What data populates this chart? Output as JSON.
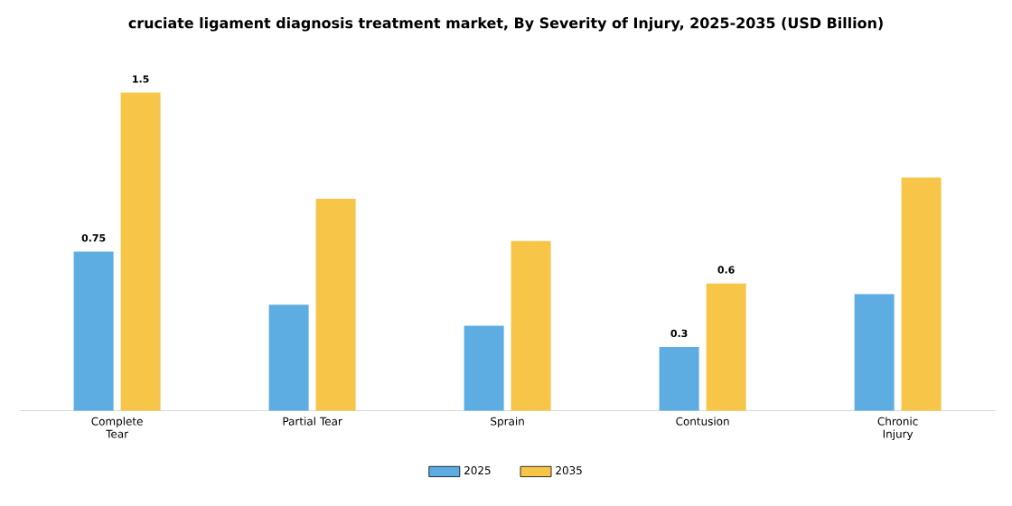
{
  "chart_data": {
    "type": "bar",
    "title": "cruciate ligament diagnosis treatment market, By Severity of Injury, 2025-2035 (USD Billion)",
    "categories": [
      "Complete Tear",
      "Partial Tear",
      "Sprain",
      "Contusion",
      "Chronic Injury"
    ],
    "series": [
      {
        "name": "2025",
        "color": "#5dade2",
        "values": [
          0.75,
          0.5,
          0.4,
          0.3,
          0.55
        ],
        "value_labels": [
          "0.75",
          null,
          null,
          "0.3",
          null
        ]
      },
      {
        "name": "2035",
        "color": "#f7c548",
        "values": [
          1.5,
          1.0,
          0.8,
          0.6,
          1.1
        ],
        "value_labels": [
          "1.5",
          null,
          null,
          "0.6",
          null
        ]
      }
    ],
    "legend": "bottom"
  }
}
